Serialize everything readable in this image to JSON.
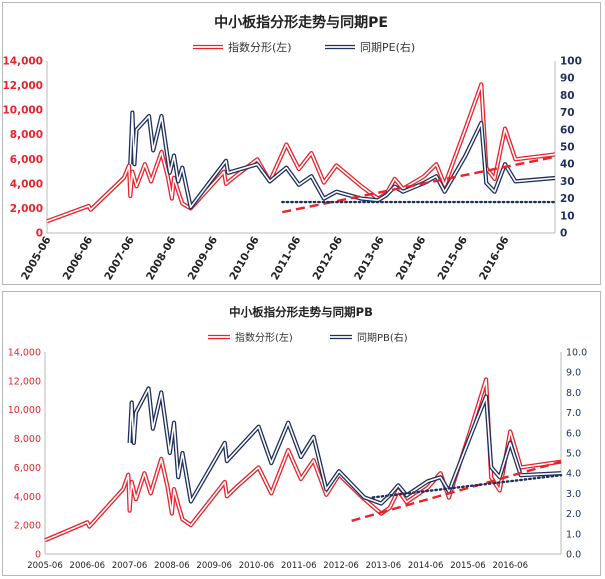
{
  "chart_data": [
    {
      "type": "line",
      "title": "中小板指分形走势与同期PE",
      "legend_placement": "top-center",
      "x_ticks": [
        "2005-06",
        "2006-06",
        "2007-06",
        "2008-06",
        "2009-06",
        "2010-06",
        "2011-06",
        "2012-06",
        "2013-06",
        "2014-06",
        "2015-06",
        "2016-06"
      ],
      "y_left": {
        "ticks": [
          "0",
          "2,000",
          "4,000",
          "6,000",
          "8,000",
          "10,000",
          "12,000",
          "14,000"
        ],
        "range": [
          0,
          14000
        ],
        "color": "#e8232a"
      },
      "y_right": {
        "ticks": [
          "0",
          "10",
          "20",
          "30",
          "40",
          "50",
          "60",
          "70",
          "80",
          "90",
          "100"
        ],
        "range": [
          0,
          100
        ],
        "color": "#1f2f5e"
      },
      "grid": false,
      "series": [
        {
          "name": "指数分形(左)",
          "axis": "left",
          "color": "#e8232a",
          "style": "double",
          "points": [
            [
              2005.45,
              950
            ],
            [
              2006.45,
              2200
            ],
            [
              2006.5,
              1900
            ],
            [
              2007.3,
              4500
            ],
            [
              2007.42,
              5500
            ],
            [
              2007.45,
              3000
            ],
            [
              2007.5,
              5000
            ],
            [
              2007.6,
              3800
            ],
            [
              2007.8,
              5600
            ],
            [
              2007.95,
              4200
            ],
            [
              2008.2,
              6600
            ],
            [
              2008.35,
              4600
            ],
            [
              2008.45,
              2800
            ],
            [
              2008.5,
              4500
            ],
            [
              2008.6,
              3400
            ],
            [
              2008.7,
              2400
            ],
            [
              2008.9,
              2000
            ],
            [
              2009.7,
              5000
            ],
            [
              2009.75,
              4000
            ],
            [
              2010.0,
              4700
            ],
            [
              2010.5,
              6000
            ],
            [
              2010.8,
              4200
            ],
            [
              2011.2,
              7200
            ],
            [
              2011.5,
              5200
            ],
            [
              2011.8,
              6500
            ],
            [
              2012.1,
              4100
            ],
            [
              2012.4,
              5500
            ],
            [
              2013.0,
              3800
            ],
            [
              2013.4,
              2800
            ],
            [
              2013.6,
              3200
            ],
            [
              2013.8,
              4400
            ],
            [
              2014.0,
              3600
            ],
            [
              2014.5,
              4600
            ],
            [
              2014.8,
              5600
            ],
            [
              2015.0,
              3900
            ],
            [
              2015.5,
              8500
            ],
            [
              2015.88,
              12100
            ],
            [
              2016.0,
              5300
            ],
            [
              2016.2,
              4400
            ],
            [
              2016.45,
              8500
            ],
            [
              2016.7,
              6000
            ],
            [
              2017.65,
              6400
            ]
          ]
        },
        {
          "name": "同期PE(右)",
          "axis": "right",
          "color": "#1f2f5e",
          "style": "double",
          "points": [
            [
              2007.45,
              40
            ],
            [
              2007.5,
              70
            ],
            [
              2007.55,
              40
            ],
            [
              2007.6,
              60
            ],
            [
              2007.9,
              68
            ],
            [
              2008.0,
              48
            ],
            [
              2008.2,
              68
            ],
            [
              2008.4,
              35
            ],
            [
              2008.5,
              45
            ],
            [
              2008.6,
              30
            ],
            [
              2008.7,
              38
            ],
            [
              2008.9,
              15
            ],
            [
              2009.75,
              42
            ],
            [
              2009.8,
              35
            ],
            [
              2010.5,
              40
            ],
            [
              2010.8,
              30
            ],
            [
              2011.2,
              38
            ],
            [
              2011.5,
              28
            ],
            [
              2011.8,
              33
            ],
            [
              2012.1,
              20
            ],
            [
              2012.4,
              24
            ],
            [
              2013.0,
              20
            ],
            [
              2013.4,
              19
            ],
            [
              2013.6,
              22
            ],
            [
              2013.8,
              27
            ],
            [
              2014.0,
              24
            ],
            [
              2014.5,
              29
            ],
            [
              2014.8,
              33
            ],
            [
              2015.0,
              24
            ],
            [
              2015.5,
              45
            ],
            [
              2015.88,
              64
            ],
            [
              2016.0,
              29
            ],
            [
              2016.2,
              24
            ],
            [
              2016.45,
              40
            ],
            [
              2016.7,
              30
            ],
            [
              2017.65,
              32
            ]
          ]
        }
      ],
      "trendlines": [
        {
          "axis": "left",
          "color": "#e8232a",
          "style": "dashed",
          "points": [
            [
              2011.1,
              1700
            ],
            [
              2017.65,
              6200
            ]
          ]
        },
        {
          "axis": "right",
          "color": "#1f2f5e",
          "style": "dotted",
          "points": [
            [
              2011.1,
              18
            ],
            [
              2017.65,
              18
            ]
          ]
        }
      ]
    },
    {
      "type": "line",
      "title": "中小板指分形走势与同期PB",
      "legend_placement": "top-center",
      "x_ticks": [
        "2005-06",
        "2006-06",
        "2007-06",
        "2008-06",
        "2009-06",
        "2010-06",
        "2011-06",
        "2012-06",
        "2013-06",
        "2014-06",
        "2015-06",
        "2016-06"
      ],
      "y_left": {
        "ticks": [
          "0",
          "2,000",
          "4,000",
          "6,000",
          "8,000",
          "10,000",
          "12,000",
          "14,000"
        ],
        "range": [
          0,
          14000
        ],
        "color": "#e8232a"
      },
      "y_right": {
        "ticks": [
          "0.0",
          "1.0",
          "2.0",
          "3.0",
          "4.0",
          "5.0",
          "6.0",
          "7.0",
          "8.0",
          "9.0",
          "10.0"
        ],
        "range": [
          0,
          10
        ],
        "color": "#1f2f5e"
      },
      "grid": false,
      "series": [
        {
          "name": "指数分形(左)",
          "axis": "left",
          "color": "#e8232a",
          "style": "double",
          "points": [
            [
              2005.45,
              950
            ],
            [
              2006.45,
              2200
            ],
            [
              2006.5,
              1900
            ],
            [
              2007.3,
              4500
            ],
            [
              2007.42,
              5500
            ],
            [
              2007.45,
              3000
            ],
            [
              2007.5,
              5000
            ],
            [
              2007.6,
              3800
            ],
            [
              2007.8,
              5600
            ],
            [
              2007.95,
              4200
            ],
            [
              2008.2,
              6600
            ],
            [
              2008.35,
              4600
            ],
            [
              2008.45,
              2800
            ],
            [
              2008.5,
              4500
            ],
            [
              2008.6,
              3400
            ],
            [
              2008.7,
              2400
            ],
            [
              2008.9,
              2000
            ],
            [
              2009.7,
              5000
            ],
            [
              2009.75,
              4000
            ],
            [
              2010.0,
              4700
            ],
            [
              2010.5,
              6000
            ],
            [
              2010.8,
              4200
            ],
            [
              2011.2,
              7200
            ],
            [
              2011.5,
              5200
            ],
            [
              2011.8,
              6500
            ],
            [
              2012.1,
              4100
            ],
            [
              2012.4,
              5500
            ],
            [
              2013.0,
              3800
            ],
            [
              2013.4,
              2800
            ],
            [
              2013.6,
              3200
            ],
            [
              2013.8,
              4400
            ],
            [
              2014.0,
              3600
            ],
            [
              2014.5,
              4600
            ],
            [
              2014.8,
              5600
            ],
            [
              2015.0,
              3900
            ],
            [
              2015.5,
              8500
            ],
            [
              2015.88,
              12100
            ],
            [
              2016.0,
              5300
            ],
            [
              2016.2,
              4400
            ],
            [
              2016.45,
              8500
            ],
            [
              2016.7,
              6000
            ],
            [
              2017.65,
              6400
            ]
          ]
        },
        {
          "name": "同期PB(右)",
          "axis": "right",
          "color": "#1f2f5e",
          "style": "double",
          "points": [
            [
              2007.45,
              5.5
            ],
            [
              2007.5,
              7.5
            ],
            [
              2007.55,
              5.5
            ],
            [
              2007.6,
              7.0
            ],
            [
              2007.9,
              8.2
            ],
            [
              2008.0,
              6.2
            ],
            [
              2008.2,
              8.0
            ],
            [
              2008.4,
              5.0
            ],
            [
              2008.5,
              6.5
            ],
            [
              2008.6,
              3.8
            ],
            [
              2008.7,
              5.0
            ],
            [
              2008.9,
              2.6
            ],
            [
              2009.7,
              5.5
            ],
            [
              2009.75,
              4.6
            ],
            [
              2010.5,
              6.3
            ],
            [
              2010.8,
              4.5
            ],
            [
              2011.2,
              6.5
            ],
            [
              2011.5,
              4.8
            ],
            [
              2011.8,
              5.8
            ],
            [
              2012.1,
              3.2
            ],
            [
              2012.4,
              4.1
            ],
            [
              2013.0,
              2.8
            ],
            [
              2013.4,
              2.5
            ],
            [
              2013.6,
              2.9
            ],
            [
              2013.8,
              3.4
            ],
            [
              2014.0,
              2.9
            ],
            [
              2014.5,
              3.6
            ],
            [
              2014.8,
              3.8
            ],
            [
              2015.0,
              3.1
            ],
            [
              2015.5,
              5.8
            ],
            [
              2015.88,
              7.8
            ],
            [
              2016.0,
              4.3
            ],
            [
              2016.2,
              3.8
            ],
            [
              2016.45,
              5.5
            ],
            [
              2016.7,
              3.9
            ],
            [
              2017.65,
              4.0
            ]
          ]
        }
      ],
      "trendlines": [
        {
          "axis": "left",
          "color": "#e8232a",
          "style": "dashed",
          "points": [
            [
              2012.7,
              2300
            ],
            [
              2017.65,
              6400
            ]
          ]
        },
        {
          "axis": "right",
          "color": "#1f2f5e",
          "style": "dotted",
          "points": [
            [
              2013.2,
              2.8
            ],
            [
              2017.65,
              3.9
            ]
          ]
        }
      ]
    }
  ]
}
